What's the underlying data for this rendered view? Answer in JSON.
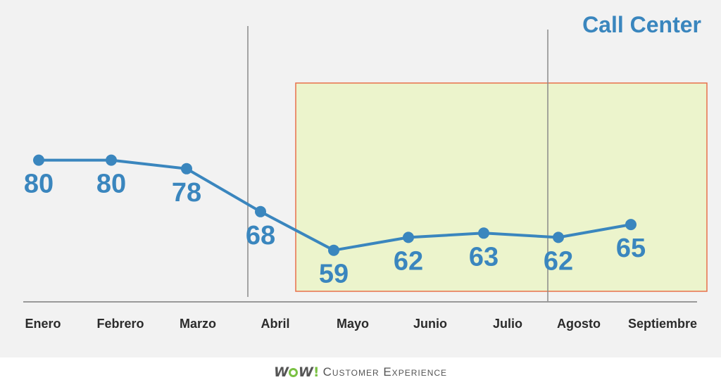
{
  "chart_data": {
    "type": "line",
    "title": "Call Center",
    "categories": [
      "Enero",
      "Febrero",
      "Marzo",
      "Abril",
      "Mayo",
      "Junio",
      "Julio",
      "Agosto",
      "Septiembre"
    ],
    "series": [
      {
        "values": [
          80,
          80,
          78,
          68,
          59,
          62,
          63,
          62,
          65
        ],
        "color": "#3a86be"
      }
    ],
    "ylim": [
      47,
      114
    ],
    "grid": false,
    "highlight_region": {
      "from_category": "Abril",
      "to_category": "Septiembre",
      "fill": "#ecf4cc",
      "border": "#e8704a"
    },
    "vertical_markers": [
      "Marzo-Abril",
      "Julio-Agosto"
    ],
    "colors": {
      "line": "#3a86be",
      "text": "#3a86be",
      "axis": "#999999",
      "marker_line": "#8a8a8a",
      "background": "#f2f2f2"
    }
  },
  "footer": {
    "logo_left": "W",
    "logo_right": "W",
    "logo_bang": "!",
    "logo_text": "Customer Experience",
    "logo_accent": "#7ac143"
  }
}
